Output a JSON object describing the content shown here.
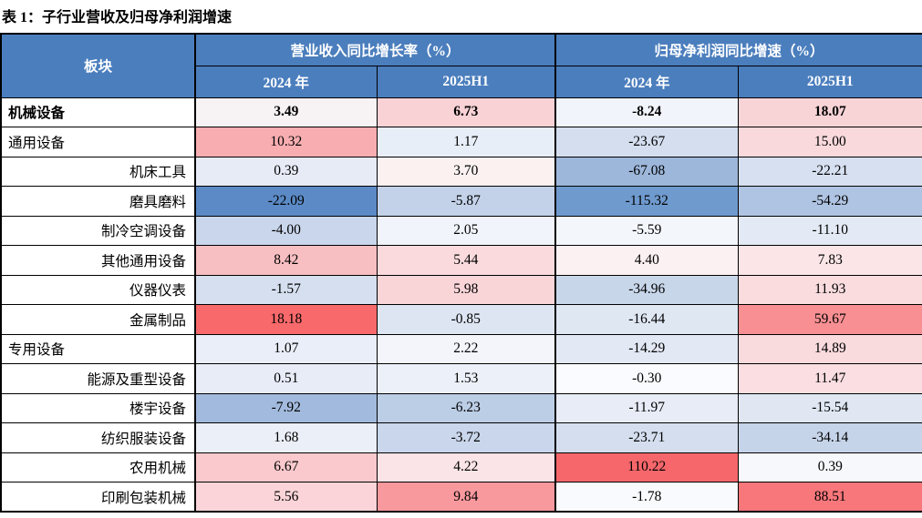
{
  "title": "表 1：子行业营收及归母净利润增速",
  "table": {
    "corner_header": "板块",
    "group_headers": [
      "营业收入同比增长率（%）",
      "归母净利润同比增速（%）"
    ],
    "sub_headers": [
      "2024 年",
      "2025H1",
      "2024 年",
      "2025H1"
    ],
    "colors": {
      "header_bg": "#4B7EBD",
      "header_text": "#FFFFFF",
      "border": "#000000",
      "scale_negative": "#5A8AC6",
      "scale_neutral": "#FCFCFF",
      "scale_positive": "#F8696B",
      "scale_note": "3-color heatmap applied per column"
    },
    "rows": [
      {
        "label": "机械设备",
        "align": "left",
        "bold": true,
        "cells": [
          {
            "v": "3.49",
            "bg": "#F7F2F4"
          },
          {
            "v": "6.73",
            "bg": "#F9D2D6"
          },
          {
            "v": "-8.24",
            "bg": "#F1F4FA"
          },
          {
            "v": "18.07",
            "bg": "#F9D4D7"
          }
        ]
      },
      {
        "label": "通用设备",
        "align": "left",
        "bold": false,
        "cells": [
          {
            "v": "10.32",
            "bg": "#F8AEB1"
          },
          {
            "v": "1.17",
            "bg": "#E8EEF8"
          },
          {
            "v": "-23.67",
            "bg": "#D4DEEF"
          },
          {
            "v": "15.00",
            "bg": "#F9D9DC"
          }
        ]
      },
      {
        "label": "机床工具",
        "align": "right",
        "bold": false,
        "cells": [
          {
            "v": "0.39",
            "bg": "#E6EBF6"
          },
          {
            "v": "3.70",
            "bg": "#FBF1F1"
          },
          {
            "v": "-67.08",
            "bg": "#9DB7DB"
          },
          {
            "v": "-22.21",
            "bg": "#D7E0F0"
          }
        ]
      },
      {
        "label": "磨具磨料",
        "align": "right",
        "bold": false,
        "cells": [
          {
            "v": "-22.09",
            "bg": "#5B8AC6"
          },
          {
            "v": "-5.87",
            "bg": "#C3D2E9"
          },
          {
            "v": "-115.32",
            "bg": "#6F9ACE"
          },
          {
            "v": "-54.29",
            "bg": "#AFC4E2"
          }
        ]
      },
      {
        "label": "制冷空调设备",
        "align": "right",
        "bold": false,
        "cells": [
          {
            "v": "-4.00",
            "bg": "#C9D6EB"
          },
          {
            "v": "2.05",
            "bg": "#F1F4FA"
          },
          {
            "v": "-5.59",
            "bg": "#F3F6FB"
          },
          {
            "v": "-11.10",
            "bg": "#E4EAF5"
          }
        ]
      },
      {
        "label": "其他通用设备",
        "align": "right",
        "bold": false,
        "cells": [
          {
            "v": "8.42",
            "bg": "#F8BFC2"
          },
          {
            "v": "5.44",
            "bg": "#FADADD"
          },
          {
            "v": "4.40",
            "bg": "#FCF1F2"
          },
          {
            "v": "7.83",
            "bg": "#FBE5E7"
          }
        ]
      },
      {
        "label": "仪器仪表",
        "align": "right",
        "bold": false,
        "cells": [
          {
            "v": "-1.57",
            "bg": "#D5DFEF"
          },
          {
            "v": "5.98",
            "bg": "#F9D5D8"
          },
          {
            "v": "-34.96",
            "bg": "#C8D6EA"
          },
          {
            "v": "11.93",
            "bg": "#FADCDF"
          }
        ]
      },
      {
        "label": "金属制品",
        "align": "right",
        "bold": false,
        "cells": [
          {
            "v": "18.18",
            "bg": "#F8696B"
          },
          {
            "v": "-0.85",
            "bg": "#DDE5F2"
          },
          {
            "v": "-16.44",
            "bg": "#DFE7F3"
          },
          {
            "v": "59.67",
            "bg": "#F88F93"
          }
        ]
      },
      {
        "label": "专用设备",
        "align": "left",
        "bold": false,
        "cells": [
          {
            "v": "1.07",
            "bg": "#E9EEF8"
          },
          {
            "v": "2.22",
            "bg": "#F3F5FB"
          },
          {
            "v": "-14.29",
            "bg": "#E2E8F4"
          },
          {
            "v": "14.89",
            "bg": "#F9DADD"
          }
        ]
      },
      {
        "label": "能源及重型设备",
        "align": "right",
        "bold": false,
        "cells": [
          {
            "v": "0.51",
            "bg": "#E7ECF7"
          },
          {
            "v": "1.53",
            "bg": "#ECF0F8"
          },
          {
            "v": "-0.30",
            "bg": "#FAFBFE"
          },
          {
            "v": "11.47",
            "bg": "#FADEE1"
          }
        ]
      },
      {
        "label": "楼宇设备",
        "align": "right",
        "bold": false,
        "cells": [
          {
            "v": "-7.92",
            "bg": "#A2BADD"
          },
          {
            "v": "-6.23",
            "bg": "#BCCDE6"
          },
          {
            "v": "-11.97",
            "bg": "#E7ECF7"
          },
          {
            "v": "-15.54",
            "bg": "#E0E7F3"
          }
        ]
      },
      {
        "label": "纺织服装设备",
        "align": "right",
        "bold": false,
        "cells": [
          {
            "v": "1.68",
            "bg": "#EBEFF8"
          },
          {
            "v": "-3.72",
            "bg": "#C9D6EB"
          },
          {
            "v": "-23.71",
            "bg": "#D4DEEF"
          },
          {
            "v": "-34.14",
            "bg": "#C6D4E9"
          }
        ]
      },
      {
        "label": "农用机械",
        "align": "right",
        "bold": false,
        "cells": [
          {
            "v": "6.67",
            "bg": "#F9C9CD"
          },
          {
            "v": "4.22",
            "bg": "#FBE4E7"
          },
          {
            "v": "110.22",
            "bg": "#F6676B"
          },
          {
            "v": "0.39",
            "bg": "#F7F8FC"
          }
        ]
      },
      {
        "label": "印刷包装机械",
        "align": "right",
        "bold": false,
        "cells": [
          {
            "v": "5.56",
            "bg": "#FAD4D8"
          },
          {
            "v": "9.84",
            "bg": "#F8999E"
          },
          {
            "v": "-1.78",
            "bg": "#F9FAFD"
          },
          {
            "v": "88.51",
            "bg": "#F7777B"
          }
        ]
      }
    ]
  },
  "chart_data": {
    "type": "table",
    "title": "表 1：子行业营收及归母净利润增速",
    "column_groups": [
      {
        "label": "营业收入同比增长率（%）",
        "columns": [
          "2024 年",
          "2025H1"
        ]
      },
      {
        "label": "归母净利润同比增速（%）",
        "columns": [
          "2024 年",
          "2025H1"
        ]
      }
    ],
    "columns": [
      "板块",
      "营业收入同比增长率 2024 年",
      "营业收入同比增长率 2025H1",
      "归母净利润同比增速 2024 年",
      "归母净利润同比增速 2025H1"
    ],
    "rows": [
      [
        "机械设备",
        3.49,
        6.73,
        -8.24,
        18.07
      ],
      [
        "通用设备",
        10.32,
        1.17,
        -23.67,
        15.0
      ],
      [
        "机床工具",
        0.39,
        3.7,
        -67.08,
        -22.21
      ],
      [
        "磨具磨料",
        -22.09,
        -5.87,
        -115.32,
        -54.29
      ],
      [
        "制冷空调设备",
        -4.0,
        2.05,
        -5.59,
        -11.1
      ],
      [
        "其他通用设备",
        8.42,
        5.44,
        4.4,
        7.83
      ],
      [
        "仪器仪表",
        -1.57,
        5.98,
        -34.96,
        11.93
      ],
      [
        "金属制品",
        18.18,
        -0.85,
        -16.44,
        59.67
      ],
      [
        "专用设备",
        1.07,
        2.22,
        -14.29,
        14.89
      ],
      [
        "能源及重型设备",
        0.51,
        1.53,
        -0.3,
        11.47
      ],
      [
        "楼宇设备",
        -7.92,
        -6.23,
        -11.97,
        -15.54
      ],
      [
        "纺织服装设备",
        1.68,
        -3.72,
        -23.71,
        -34.14
      ],
      [
        "农用机械",
        6.67,
        4.22,
        110.22,
        0.39
      ],
      [
        "印刷包装机械",
        5.56,
        9.84,
        -1.78,
        88.51
      ]
    ],
    "layout": {
      "heatmap": true,
      "heatmap_scope": "per-column",
      "grid": true
    }
  }
}
